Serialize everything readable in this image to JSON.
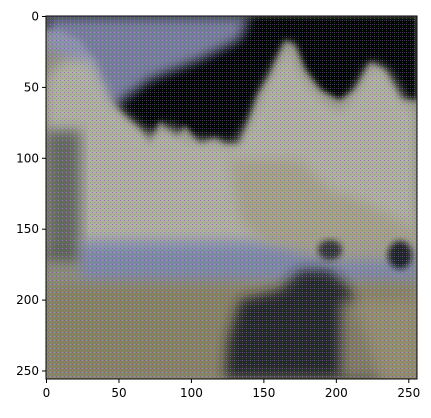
{
  "image": {
    "description_free": true,
    "pixel_extent": [
      0,
      256,
      256,
      0
    ],
    "colors": {
      "background": "#ffffff",
      "frame": "#000000",
      "sky_dark": "#050505",
      "water_blue": "#7b86b6",
      "rock_tan": "#a79e83",
      "sand": "#8b8060",
      "shadow_dark": "#1b1b22"
    }
  },
  "axes": {
    "xticks": [
      0,
      50,
      100,
      150,
      200,
      250
    ],
    "yticks": [
      0,
      50,
      100,
      150,
      200,
      250
    ],
    "xtick_labels": [
      "0",
      "50",
      "100",
      "150",
      "200",
      "250"
    ],
    "ytick_labels": [
      "0",
      "50",
      "100",
      "150",
      "200",
      "250"
    ],
    "xlim": [
      0,
      256
    ],
    "ylim": [
      256,
      0
    ]
  }
}
